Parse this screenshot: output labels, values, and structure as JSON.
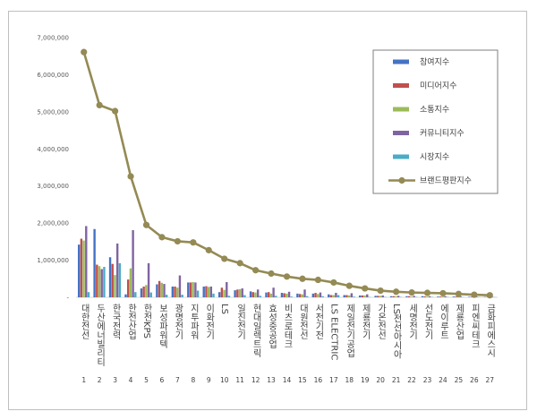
{
  "chart_data": {
    "type": "bar",
    "title": "",
    "xlabel": "",
    "ylabel": "",
    "ylim": [
      0,
      7000000
    ],
    "yticks": [
      0,
      1000000,
      2000000,
      3000000,
      4000000,
      5000000,
      6000000,
      7000000
    ],
    "ytick_labels": [
      "-",
      "1,000,000",
      "2,000,000",
      "3,000,000",
      "4,000,000",
      "5,000,000",
      "6,000,000",
      "7,000,000"
    ],
    "grid": false,
    "legend_position": "top-right",
    "ranks": [
      "1",
      "2",
      "3",
      "4",
      "5",
      "6",
      "7",
      "8",
      "9",
      "10",
      "11",
      "12",
      "13",
      "14",
      "15",
      "16",
      "17",
      "18",
      "19",
      "20",
      "21",
      "22",
      "23",
      "24",
      "25",
      "26",
      "27"
    ],
    "categories": [
      "대한전선",
      "두산에너빌리티",
      "한국전력",
      "한전산업",
      "한전KPS",
      "보성파워텍",
      "광명전기",
      "지투파워",
      "이화전기",
      "LS",
      "일진전기",
      "현대일렉트릭",
      "효성중공업",
      "비츠로테크",
      "대원전선",
      "서전기전",
      "LS ELECTRIC",
      "제일전기공업",
      "제룡전기",
      "가온전선",
      "LS전선아시아",
      "세명전기",
      "선도전기",
      "에이루트",
      "제룡산업",
      "피엔씨테크",
      "금화피에스시"
    ],
    "series": [
      {
        "name": "참여지수",
        "color": "#4472c4",
        "type": "bar",
        "values": [
          1420000,
          1840000,
          1080000,
          80000,
          240000,
          350000,
          290000,
          400000,
          290000,
          140000,
          190000,
          160000,
          130000,
          120000,
          100000,
          100000,
          80000,
          60000,
          50000,
          40000,
          30000,
          30000,
          30000,
          20000,
          20000,
          15000,
          10000
        ]
      },
      {
        "name": "미디어지수",
        "color": "#c0504d",
        "type": "bar",
        "values": [
          1580000,
          880000,
          900000,
          480000,
          290000,
          440000,
          290000,
          400000,
          300000,
          260000,
          210000,
          140000,
          140000,
          110000,
          90000,
          120000,
          60000,
          60000,
          50000,
          40000,
          30000,
          30000,
          25000,
          20000,
          20000,
          15000,
          10000
        ]
      },
      {
        "name": "소통지수",
        "color": "#9bbb59",
        "type": "bar",
        "values": [
          1530000,
          840000,
          600000,
          780000,
          330000,
          390000,
          260000,
          410000,
          280000,
          200000,
          220000,
          130000,
          100000,
          100000,
          80000,
          90000,
          60000,
          50000,
          50000,
          40000,
          30000,
          20000,
          20000,
          20000,
          20000,
          10000,
          10000
        ]
      },
      {
        "name": "커뮤니티지수",
        "color": "#8064a2",
        "type": "bar",
        "values": [
          1920000,
          760000,
          1450000,
          1810000,
          920000,
          360000,
          590000,
          400000,
          290000,
          410000,
          240000,
          210000,
          260000,
          150000,
          210000,
          130000,
          120000,
          110000,
          80000,
          50000,
          40000,
          40000,
          30000,
          30000,
          20000,
          20000,
          15000
        ]
      },
      {
        "name": "시장지수",
        "color": "#4bacc6",
        "type": "bar",
        "values": [
          140000,
          820000,
          920000,
          140000,
          130000,
          70000,
          70000,
          180000,
          100000,
          40000,
          60000,
          40000,
          40000,
          20000,
          30000,
          30000,
          60000,
          20000,
          10000,
          10000,
          10000,
          10000,
          10000,
          10000,
          5000,
          5000,
          5000
        ]
      },
      {
        "name": "브랜드평판지수",
        "color": "#948a54",
        "type": "line",
        "values": [
          6610000,
          5180000,
          5020000,
          3260000,
          1950000,
          1620000,
          1510000,
          1480000,
          1270000,
          1040000,
          920000,
          730000,
          640000,
          560000,
          500000,
          470000,
          400000,
          310000,
          240000,
          180000,
          150000,
          130000,
          120000,
          110000,
          90000,
          70000,
          55000
        ]
      }
    ]
  }
}
